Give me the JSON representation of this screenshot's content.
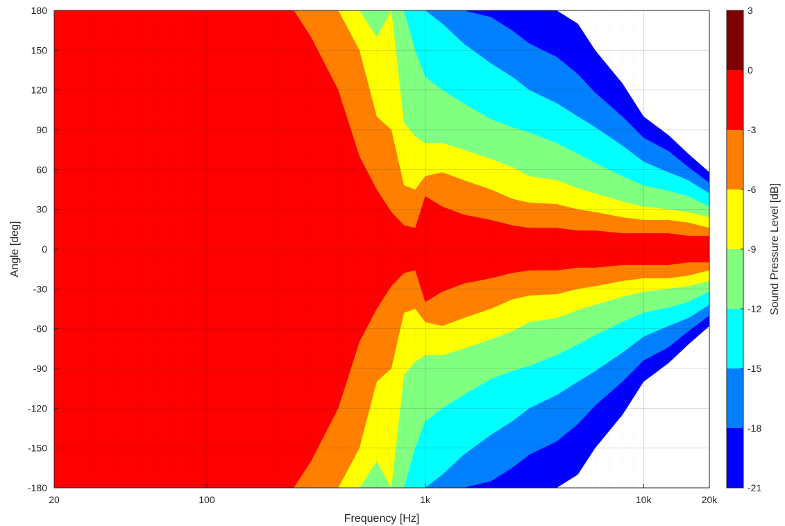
{
  "chart_data": {
    "type": "heatmap",
    "subtype": "filled-contour",
    "title": "",
    "xlabel": "Frequency [Hz]",
    "ylabel": "Angle [deg]",
    "colorbar_label": "Sound Pressure Level [dB]",
    "x_scale": "log",
    "xlim": [
      20,
      20000
    ],
    "ylim": [
      -180,
      180
    ],
    "x_ticks": [
      20,
      100,
      1000,
      10000,
      20000
    ],
    "x_tick_labels": [
      "20",
      "100",
      "1k",
      "10k",
      "20k"
    ],
    "y_ticks": [
      180,
      150,
      120,
      90,
      60,
      30,
      0,
      -30,
      -60,
      -90,
      -120,
      -150,
      -180
    ],
    "y_tick_labels": [
      "180",
      "150",
      "120",
      "90",
      "60",
      "30",
      "0",
      "-30",
      "-60",
      "-90",
      "-120",
      "-150",
      "-180"
    ],
    "grid": true,
    "levels": [
      -21,
      -18,
      -15,
      -12,
      -9,
      -6,
      -3,
      0,
      3
    ],
    "level_labels": [
      "-21",
      "-18",
      "-15",
      "-12",
      "-9",
      "-6",
      "-3",
      "0",
      "3"
    ],
    "colors": [
      "#0000ff",
      "#0080ff",
      "#00ffff",
      "#80ff80",
      "#ffff00",
      "#ff8000",
      "#ff0000",
      "#800000"
    ],
    "beamwidth_contours": {
      "frequency_hz": [
        20,
        30,
        60,
        100,
        200,
        250,
        300,
        400,
        500,
        600,
        700,
        800,
        900,
        1000,
        1200,
        1500,
        2000,
        2500,
        3000,
        4000,
        5000,
        6000,
        8000,
        10000,
        13000,
        16000,
        20000
      ],
      "angle_-3dB": [
        180,
        180,
        180,
        180,
        180,
        180,
        160,
        120,
        70,
        45,
        28,
        18,
        16,
        40,
        32,
        26,
        22,
        18,
        16,
        16,
        14,
        14,
        12,
        12,
        12,
        10,
        10
      ],
      "angle_-6dB": [
        180,
        180,
        180,
        180,
        180,
        180,
        180,
        180,
        150,
        100,
        90,
        48,
        45,
        55,
        58,
        52,
        45,
        38,
        35,
        34,
        30,
        28,
        24,
        22,
        22,
        20,
        16
      ],
      "angle_-9dB": [
        180,
        180,
        180,
        180,
        180,
        180,
        180,
        180,
        180,
        160,
        180,
        95,
        85,
        80,
        80,
        75,
        68,
        62,
        55,
        52,
        46,
        42,
        36,
        32,
        30,
        28,
        24
      ],
      "angle_-12dB": [
        180,
        180,
        180,
        180,
        180,
        180,
        180,
        180,
        180,
        180,
        180,
        180,
        150,
        130,
        120,
        110,
        98,
        92,
        88,
        80,
        72,
        65,
        55,
        48,
        44,
        40,
        32
      ],
      "angle_-15dB": [
        180,
        180,
        180,
        180,
        180,
        180,
        180,
        180,
        180,
        180,
        180,
        180,
        180,
        180,
        170,
        155,
        140,
        130,
        120,
        110,
        100,
        92,
        78,
        66,
        58,
        52,
        42
      ],
      "angle_-18dB": [
        180,
        180,
        180,
        180,
        180,
        180,
        180,
        180,
        180,
        180,
        180,
        180,
        180,
        180,
        180,
        180,
        175,
        165,
        155,
        145,
        132,
        118,
        100,
        84,
        74,
        62,
        50
      ],
      "angle_-21dB": [
        180,
        180,
        180,
        180,
        180,
        180,
        180,
        180,
        180,
        180,
        180,
        180,
        180,
        180,
        180,
        180,
        180,
        180,
        180,
        180,
        170,
        150,
        125,
        100,
        86,
        72,
        58
      ]
    }
  }
}
